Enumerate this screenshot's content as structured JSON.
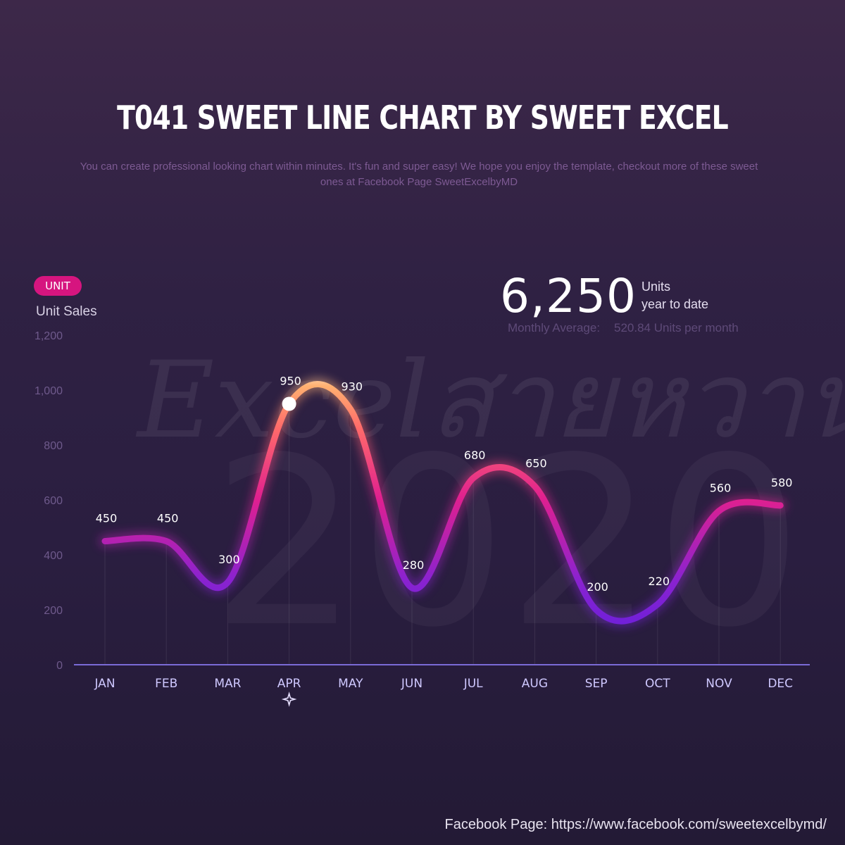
{
  "header": {
    "title": "T041 SWEET LINE CHART BY SWEET EXCEL",
    "subtitle": "You can create professional looking chart within minutes. It's fun and super easy! We hope you enjoy the template, checkout more of these sweet ones at Facebook Page SweetExcelbyMD"
  },
  "badge": {
    "label": "UNIT"
  },
  "kpi": {
    "value": "6,250",
    "units_label": "Units",
    "period_label": "year to date",
    "avg_label": "Monthly Average:",
    "avg_value": "520.84 Units per month"
  },
  "watermark": {
    "text": "Excelสายหวาน",
    "year": "2020"
  },
  "footer": {
    "text": "Facebook Page: https://www.facebook.com/sweetexcelbymd/"
  },
  "colors": {
    "accent": "#d6157f",
    "line_low": "#7a1fd6",
    "line_mid": "#e0208f",
    "line_high": "#ffb070"
  },
  "chart_data": {
    "type": "line",
    "ylabel": "Unit Sales",
    "xlabel": "",
    "categories": [
      "JAN",
      "FEB",
      "MAR",
      "APR",
      "MAY",
      "JUN",
      "JUL",
      "AUG",
      "SEP",
      "OCT",
      "NOV",
      "DEC"
    ],
    "series": [
      {
        "values": [
          450,
          450,
          300,
          950,
          930,
          280,
          680,
          650,
          200,
          220,
          560,
          580
        ]
      }
    ],
    "ylim": [
      0,
      1200
    ],
    "yticks": [
      0,
      200,
      400,
      600,
      800,
      1000,
      1200
    ],
    "ytick_labels": [
      "0",
      "200",
      "400",
      "600",
      "800",
      "1,000",
      "1,200"
    ],
    "highlight": {
      "category": "APR",
      "value": 950
    },
    "grid": false,
    "smooth": true
  }
}
